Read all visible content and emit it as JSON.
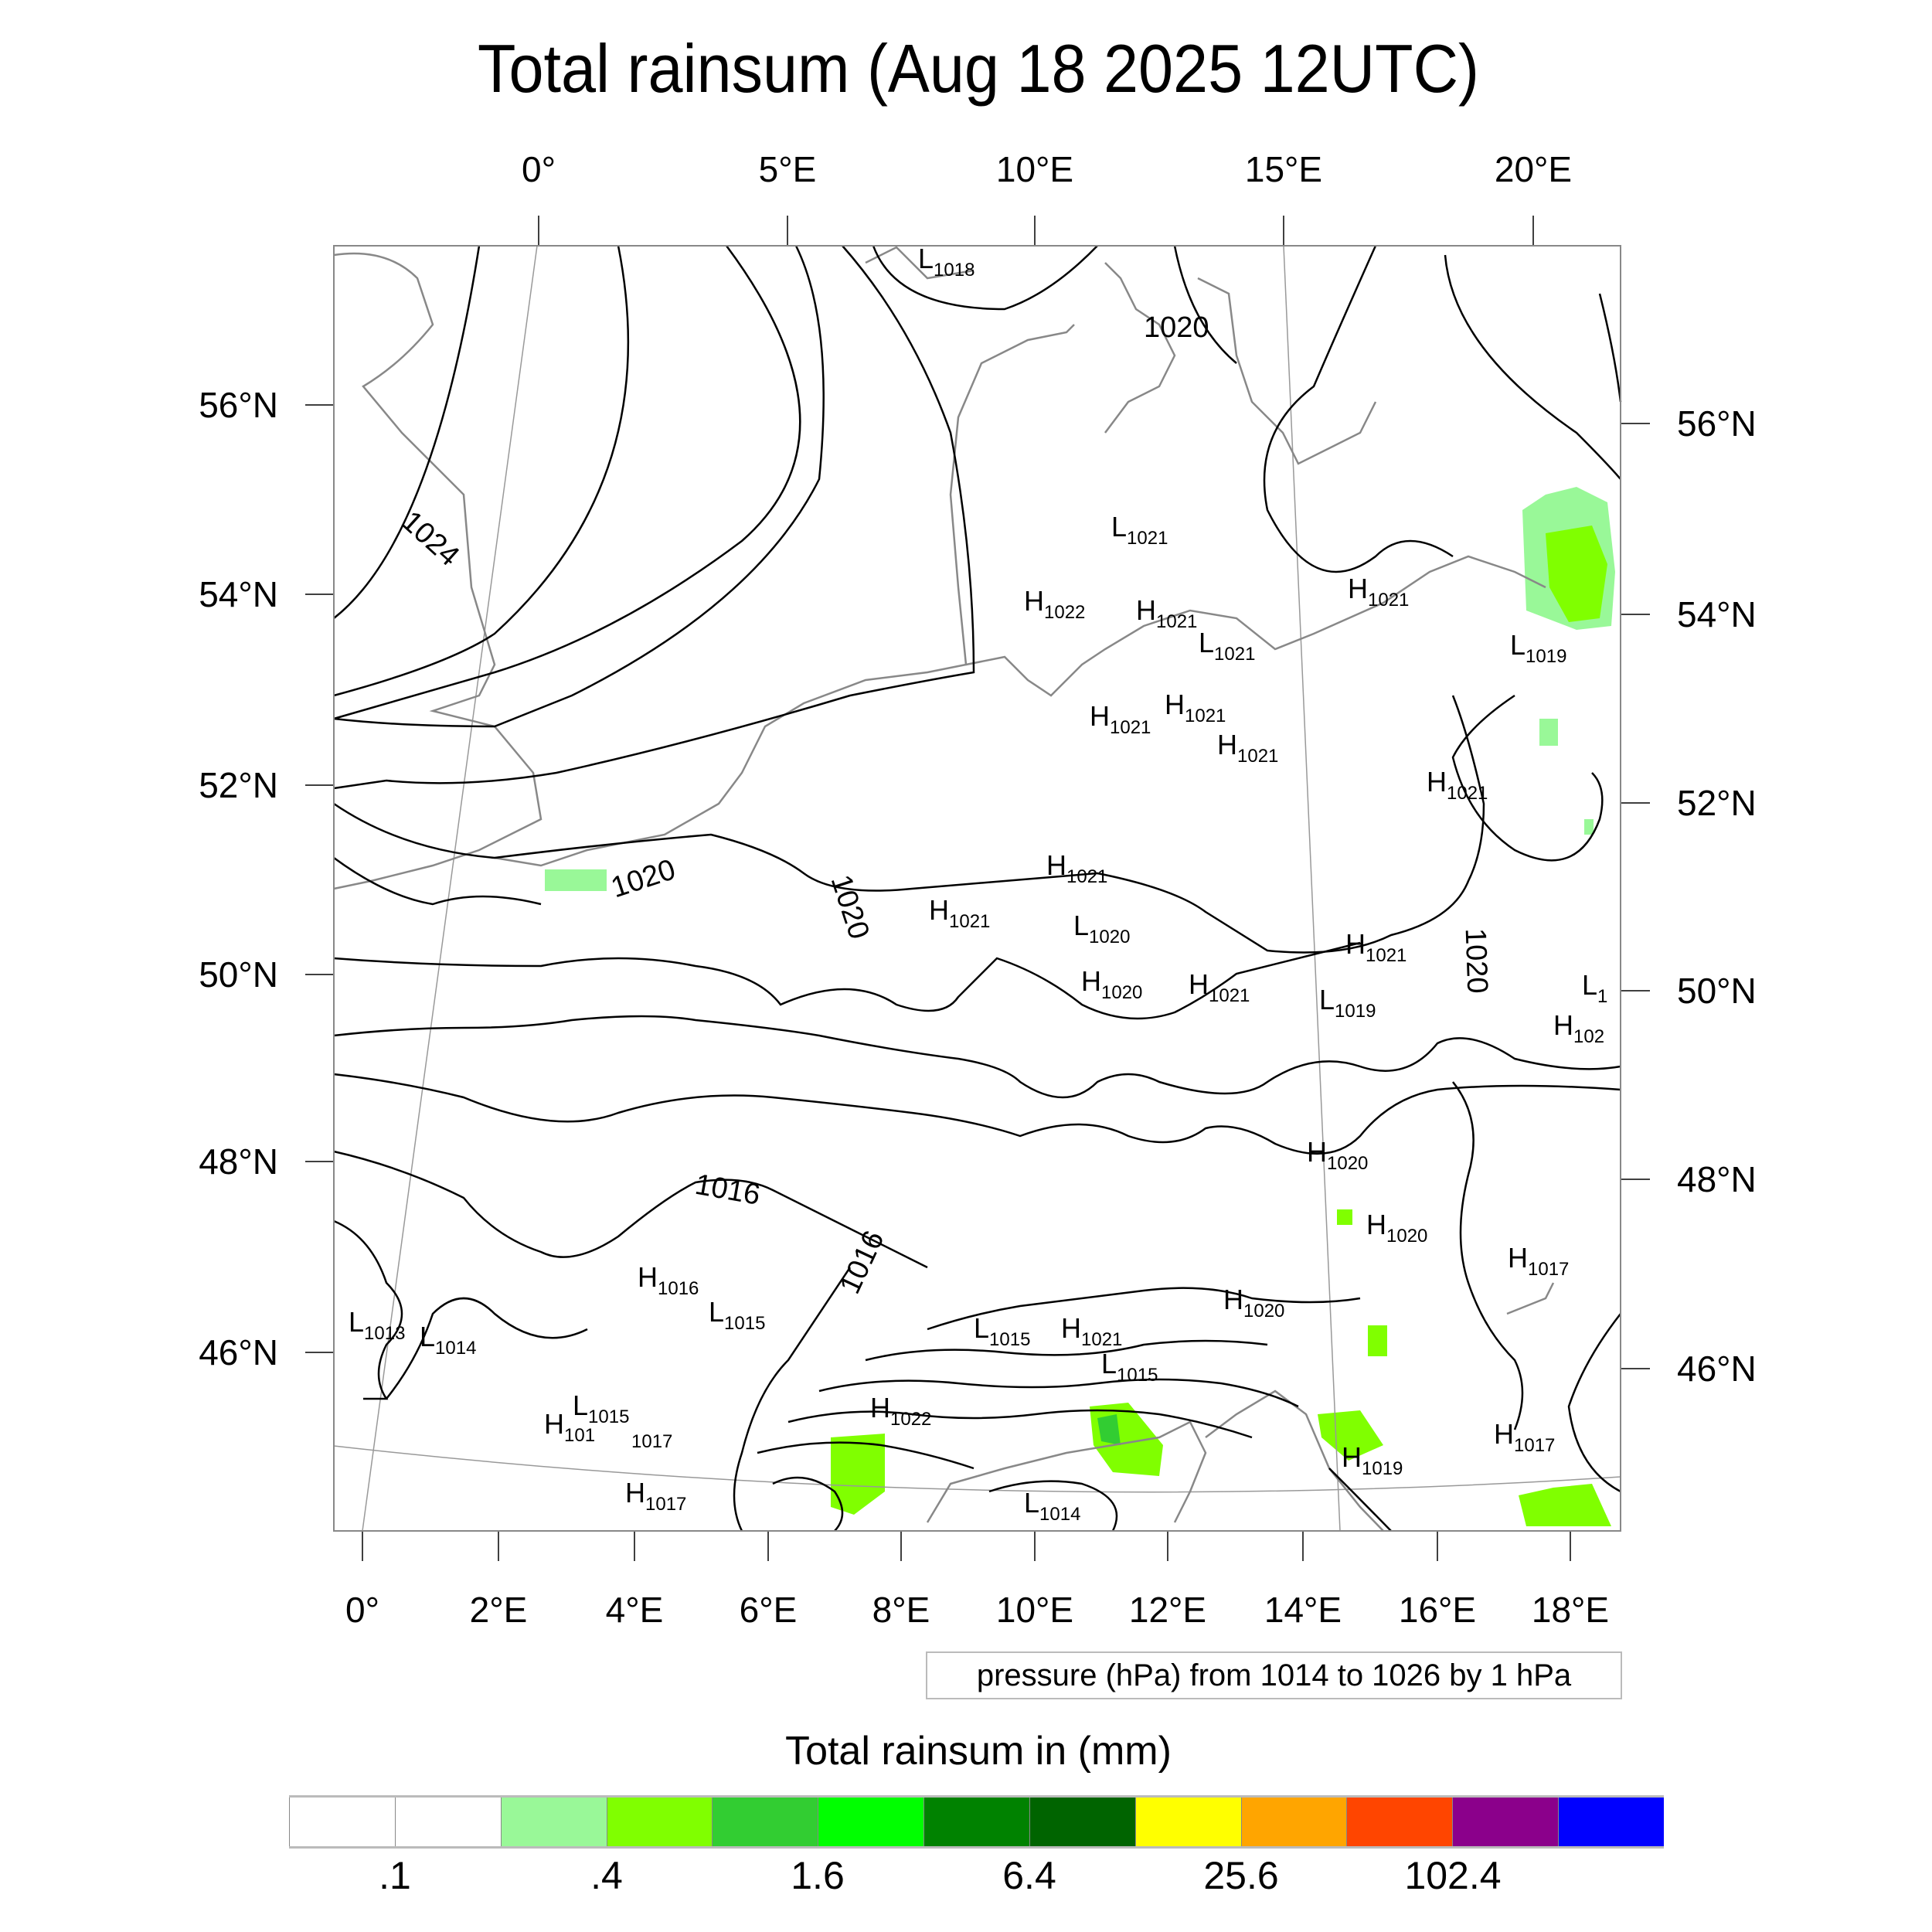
{
  "title": "Total rainsum (Aug 18 2025 12UTC)",
  "axes": {
    "top_lon": [
      "0°",
      "5°E",
      "10°E",
      "15°E",
      "20°E"
    ],
    "bottom_lon": [
      "0°",
      "2°E",
      "4°E",
      "6°E",
      "8°E",
      "10°E",
      "12°E",
      "14°E",
      "16°E",
      "18°E"
    ],
    "left_lat": [
      "56°N",
      "54°N",
      "52°N",
      "50°N",
      "48°N",
      "46°N"
    ],
    "right_lat": [
      "56°N",
      "54°N",
      "52°N",
      "50°N",
      "48°N",
      "46°N"
    ]
  },
  "contour_info": "pressure (hPa) from 1014 to 1026 by 1 hPa",
  "contour_labels": [
    "1020",
    "1024",
    "1020",
    "1020",
    "1020",
    "1016",
    "1016"
  ],
  "pressure_centers": [
    {
      "t": "L",
      "v": "1018"
    },
    {
      "t": "L",
      "v": "1021"
    },
    {
      "t": "H",
      "v": "1022"
    },
    {
      "t": "H",
      "v": "1021"
    },
    {
      "t": "L",
      "v": "1021"
    },
    {
      "t": "H",
      "v": "1021"
    },
    {
      "t": "L",
      "v": "1019"
    },
    {
      "t": "H",
      "v": "1021"
    },
    {
      "t": "H",
      "v": "1021"
    },
    {
      "t": "H",
      "v": "1021"
    },
    {
      "t": "H",
      "v": "1021"
    },
    {
      "t": "H",
      "v": "1021"
    },
    {
      "t": "H",
      "v": "1021"
    },
    {
      "t": "L",
      "v": "1020"
    },
    {
      "t": "H",
      "v": "1021"
    },
    {
      "t": "L",
      "v": "1"
    },
    {
      "t": "H",
      "v": "1020"
    },
    {
      "t": "H",
      "v": "1021"
    },
    {
      "t": "L",
      "v": "1019"
    },
    {
      "t": "H",
      "v": "102"
    },
    {
      "t": "H",
      "v": "1020"
    },
    {
      "t": "H",
      "v": "1020"
    },
    {
      "t": "H",
      "v": "1017"
    },
    {
      "t": "H",
      "v": "1016"
    },
    {
      "t": "L",
      "v": "1015"
    },
    {
      "t": "H",
      "v": "1020"
    },
    {
      "t": "L",
      "v": "1015"
    },
    {
      "t": "H",
      "v": "1021"
    },
    {
      "t": "L",
      "v": "1013"
    },
    {
      "t": "L",
      "v": "1014"
    },
    {
      "t": "L",
      "v": "1015"
    },
    {
      "t": "L",
      "v": "1015"
    },
    {
      "t": "H",
      "v": "1022"
    },
    {
      "t": "H",
      "v": "101"
    },
    {
      "t": "",
      "v": "1017"
    },
    {
      "t": "H",
      "v": "1017"
    },
    {
      "t": "H",
      "v": "1019"
    },
    {
      "t": "H",
      "v": "1017"
    },
    {
      "t": "L",
      "v": "1014"
    }
  ],
  "colorbar": {
    "title": "Total rainsum in (mm)",
    "colors": [
      "#ffffff",
      "#ffffff",
      "#99f898",
      "#80ff00",
      "#32cd32",
      "#00ff00",
      "#008200",
      "#006400",
      "#ffff00",
      "#ffa500",
      "#ff4500",
      "#8b008b",
      "#0000ff"
    ],
    "labels": [
      ".1",
      ".4",
      "1.6",
      "6.4",
      "25.6",
      "102.4"
    ]
  },
  "rain_colors": {
    "light": "#99f898",
    "medium": "#80ff00",
    "heavy": "#32cd32"
  }
}
